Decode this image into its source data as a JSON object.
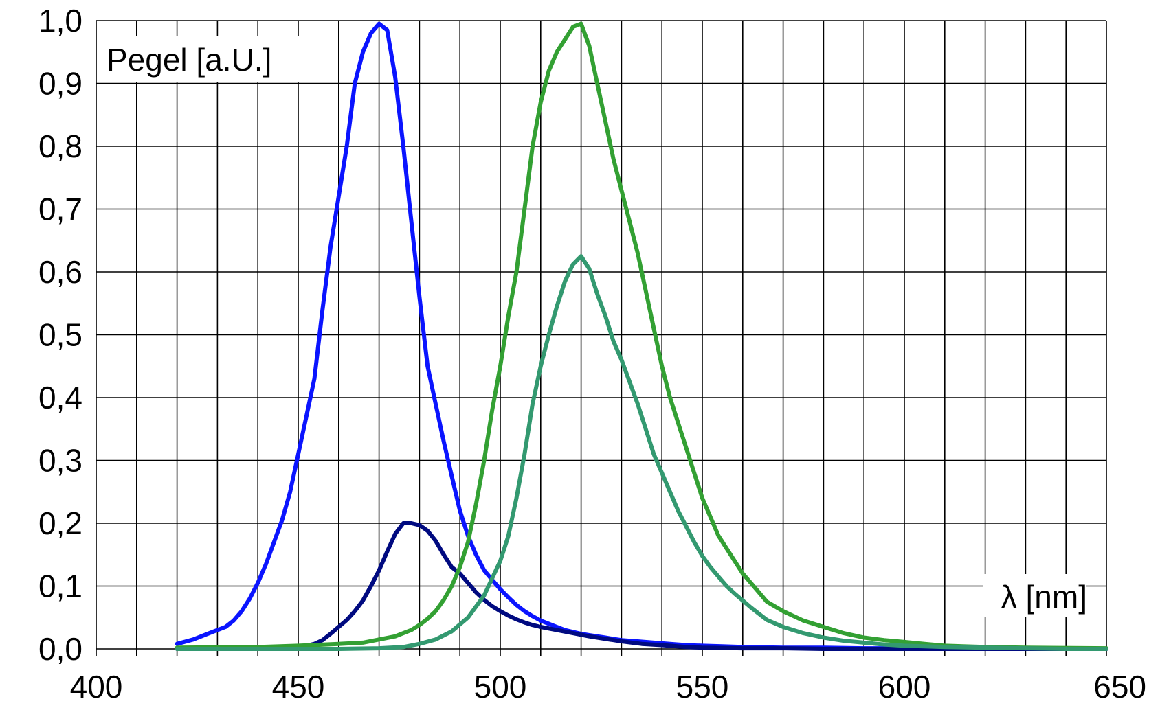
{
  "chart_data": {
    "type": "line",
    "ylabel": "Pegel [a.U.]",
    "xlabel": "λ [nm]",
    "xlim": [
      400,
      650
    ],
    "ylim": [
      0,
      1.0
    ],
    "x_ticks": [
      "400",
      "450",
      "500",
      "550",
      "600",
      "650"
    ],
    "y_ticks": [
      "0,0",
      "0,1",
      "0,2",
      "0,3",
      "0,4",
      "0,5",
      "0,6",
      "0,7",
      "0,8",
      "0,9",
      "1,0"
    ],
    "grid": true,
    "series": [
      {
        "color": "#0a14ff",
        "x": [
          420,
          424,
          428,
          432,
          434,
          436,
          438,
          440,
          442,
          444,
          446,
          448,
          450,
          452,
          454,
          456,
          458,
          460,
          462,
          464,
          466,
          468,
          470,
          472,
          474,
          476,
          478,
          480,
          482,
          484,
          486,
          488,
          490,
          492,
          494,
          496,
          498,
          500,
          502,
          504,
          506,
          508,
          510,
          512,
          514,
          516,
          518,
          520,
          522,
          524,
          526,
          528,
          530,
          534,
          538,
          542,
          546,
          550,
          555,
          560,
          570,
          580,
          590,
          600,
          620,
          635,
          650
        ],
        "y": [
          0.008,
          0.015,
          0.025,
          0.035,
          0.045,
          0.06,
          0.08,
          0.105,
          0.135,
          0.17,
          0.205,
          0.25,
          0.31,
          0.37,
          0.43,
          0.54,
          0.64,
          0.72,
          0.8,
          0.9,
          0.95,
          0.98,
          0.995,
          0.985,
          0.91,
          0.8,
          0.68,
          0.56,
          0.45,
          0.39,
          0.33,
          0.275,
          0.22,
          0.18,
          0.15,
          0.125,
          0.11,
          0.095,
          0.082,
          0.07,
          0.06,
          0.052,
          0.045,
          0.04,
          0.035,
          0.03,
          0.027,
          0.024,
          0.022,
          0.02,
          0.018,
          0.016,
          0.014,
          0.012,
          0.01,
          0.008,
          0.006,
          0.005,
          0.004,
          0.003,
          0.002,
          0.002,
          0.001,
          0.001,
          0.001,
          0.001,
          0.0
        ]
      },
      {
        "color": "#000a80",
        "x": [
          420,
          430,
          440,
          448,
          452,
          454,
          456,
          458,
          460,
          462,
          464,
          466,
          468,
          470,
          472,
          474,
          476,
          478,
          480,
          482,
          484,
          486,
          488,
          490,
          492,
          494,
          496,
          498,
          500,
          502,
          504,
          506,
          508,
          510,
          514,
          518,
          522,
          526,
          530,
          535,
          540,
          546,
          550,
          560,
          570,
          580,
          590,
          600,
          620,
          650
        ],
        "y": [
          0.0,
          0.0,
          0.001,
          0.003,
          0.005,
          0.008,
          0.014,
          0.024,
          0.035,
          0.046,
          0.06,
          0.077,
          0.1,
          0.125,
          0.155,
          0.183,
          0.2,
          0.2,
          0.197,
          0.188,
          0.172,
          0.15,
          0.13,
          0.12,
          0.105,
          0.09,
          0.078,
          0.068,
          0.06,
          0.053,
          0.047,
          0.042,
          0.038,
          0.035,
          0.03,
          0.025,
          0.02,
          0.016,
          0.012,
          0.008,
          0.006,
          0.003,
          0.002,
          0.001,
          0.001,
          0.0,
          0.0,
          0.0,
          0.0,
          0.0
        ]
      },
      {
        "color": "#33a033",
        "x": [
          420,
          440,
          450,
          460,
          466,
          470,
          474,
          476,
          478,
          480,
          482,
          484,
          486,
          488,
          490,
          492,
          494,
          496,
          498,
          500,
          502,
          504,
          506,
          508,
          510,
          512,
          514,
          516,
          518,
          520,
          522,
          524,
          526,
          528,
          530,
          532,
          534,
          536,
          538,
          540,
          542,
          544,
          546,
          548,
          550,
          552,
          554,
          556,
          558,
          560,
          562,
          564,
          566,
          570,
          575,
          580,
          585,
          590,
          595,
          600,
          605,
          610,
          620,
          630,
          650
        ],
        "y": [
          0.002,
          0.003,
          0.005,
          0.008,
          0.01,
          0.015,
          0.02,
          0.025,
          0.03,
          0.038,
          0.048,
          0.06,
          0.078,
          0.1,
          0.13,
          0.17,
          0.23,
          0.3,
          0.38,
          0.45,
          0.53,
          0.6,
          0.7,
          0.8,
          0.87,
          0.92,
          0.95,
          0.97,
          0.99,
          0.995,
          0.96,
          0.9,
          0.84,
          0.78,
          0.73,
          0.68,
          0.63,
          0.57,
          0.51,
          0.45,
          0.4,
          0.36,
          0.32,
          0.28,
          0.24,
          0.21,
          0.18,
          0.16,
          0.14,
          0.12,
          0.105,
          0.09,
          0.075,
          0.06,
          0.045,
          0.035,
          0.025,
          0.018,
          0.014,
          0.011,
          0.008,
          0.005,
          0.003,
          0.002,
          0.001
        ]
      },
      {
        "color": "#339970",
        "x": [
          420,
          460,
          470,
          476,
          480,
          484,
          488,
          492,
          496,
          500,
          502,
          504,
          506,
          508,
          510,
          512,
          514,
          516,
          518,
          520,
          522,
          524,
          526,
          528,
          530,
          532,
          534,
          536,
          538,
          540,
          542,
          544,
          546,
          548,
          550,
          552,
          554,
          556,
          558,
          560,
          562,
          564,
          566,
          570,
          575,
          580,
          585,
          590,
          595,
          600,
          605,
          610,
          620,
          630,
          640,
          650
        ],
        "y": [
          0.0,
          0.0,
          0.001,
          0.003,
          0.008,
          0.015,
          0.028,
          0.05,
          0.085,
          0.14,
          0.18,
          0.24,
          0.31,
          0.39,
          0.45,
          0.5,
          0.545,
          0.585,
          0.612,
          0.625,
          0.605,
          0.565,
          0.53,
          0.49,
          0.46,
          0.425,
          0.39,
          0.35,
          0.31,
          0.28,
          0.25,
          0.22,
          0.195,
          0.17,
          0.148,
          0.13,
          0.115,
          0.1,
          0.088,
          0.077,
          0.066,
          0.056,
          0.046,
          0.035,
          0.025,
          0.018,
          0.013,
          0.01,
          0.007,
          0.005,
          0.004,
          0.003,
          0.002,
          0.001,
          0.0,
          0.0
        ]
      }
    ]
  }
}
